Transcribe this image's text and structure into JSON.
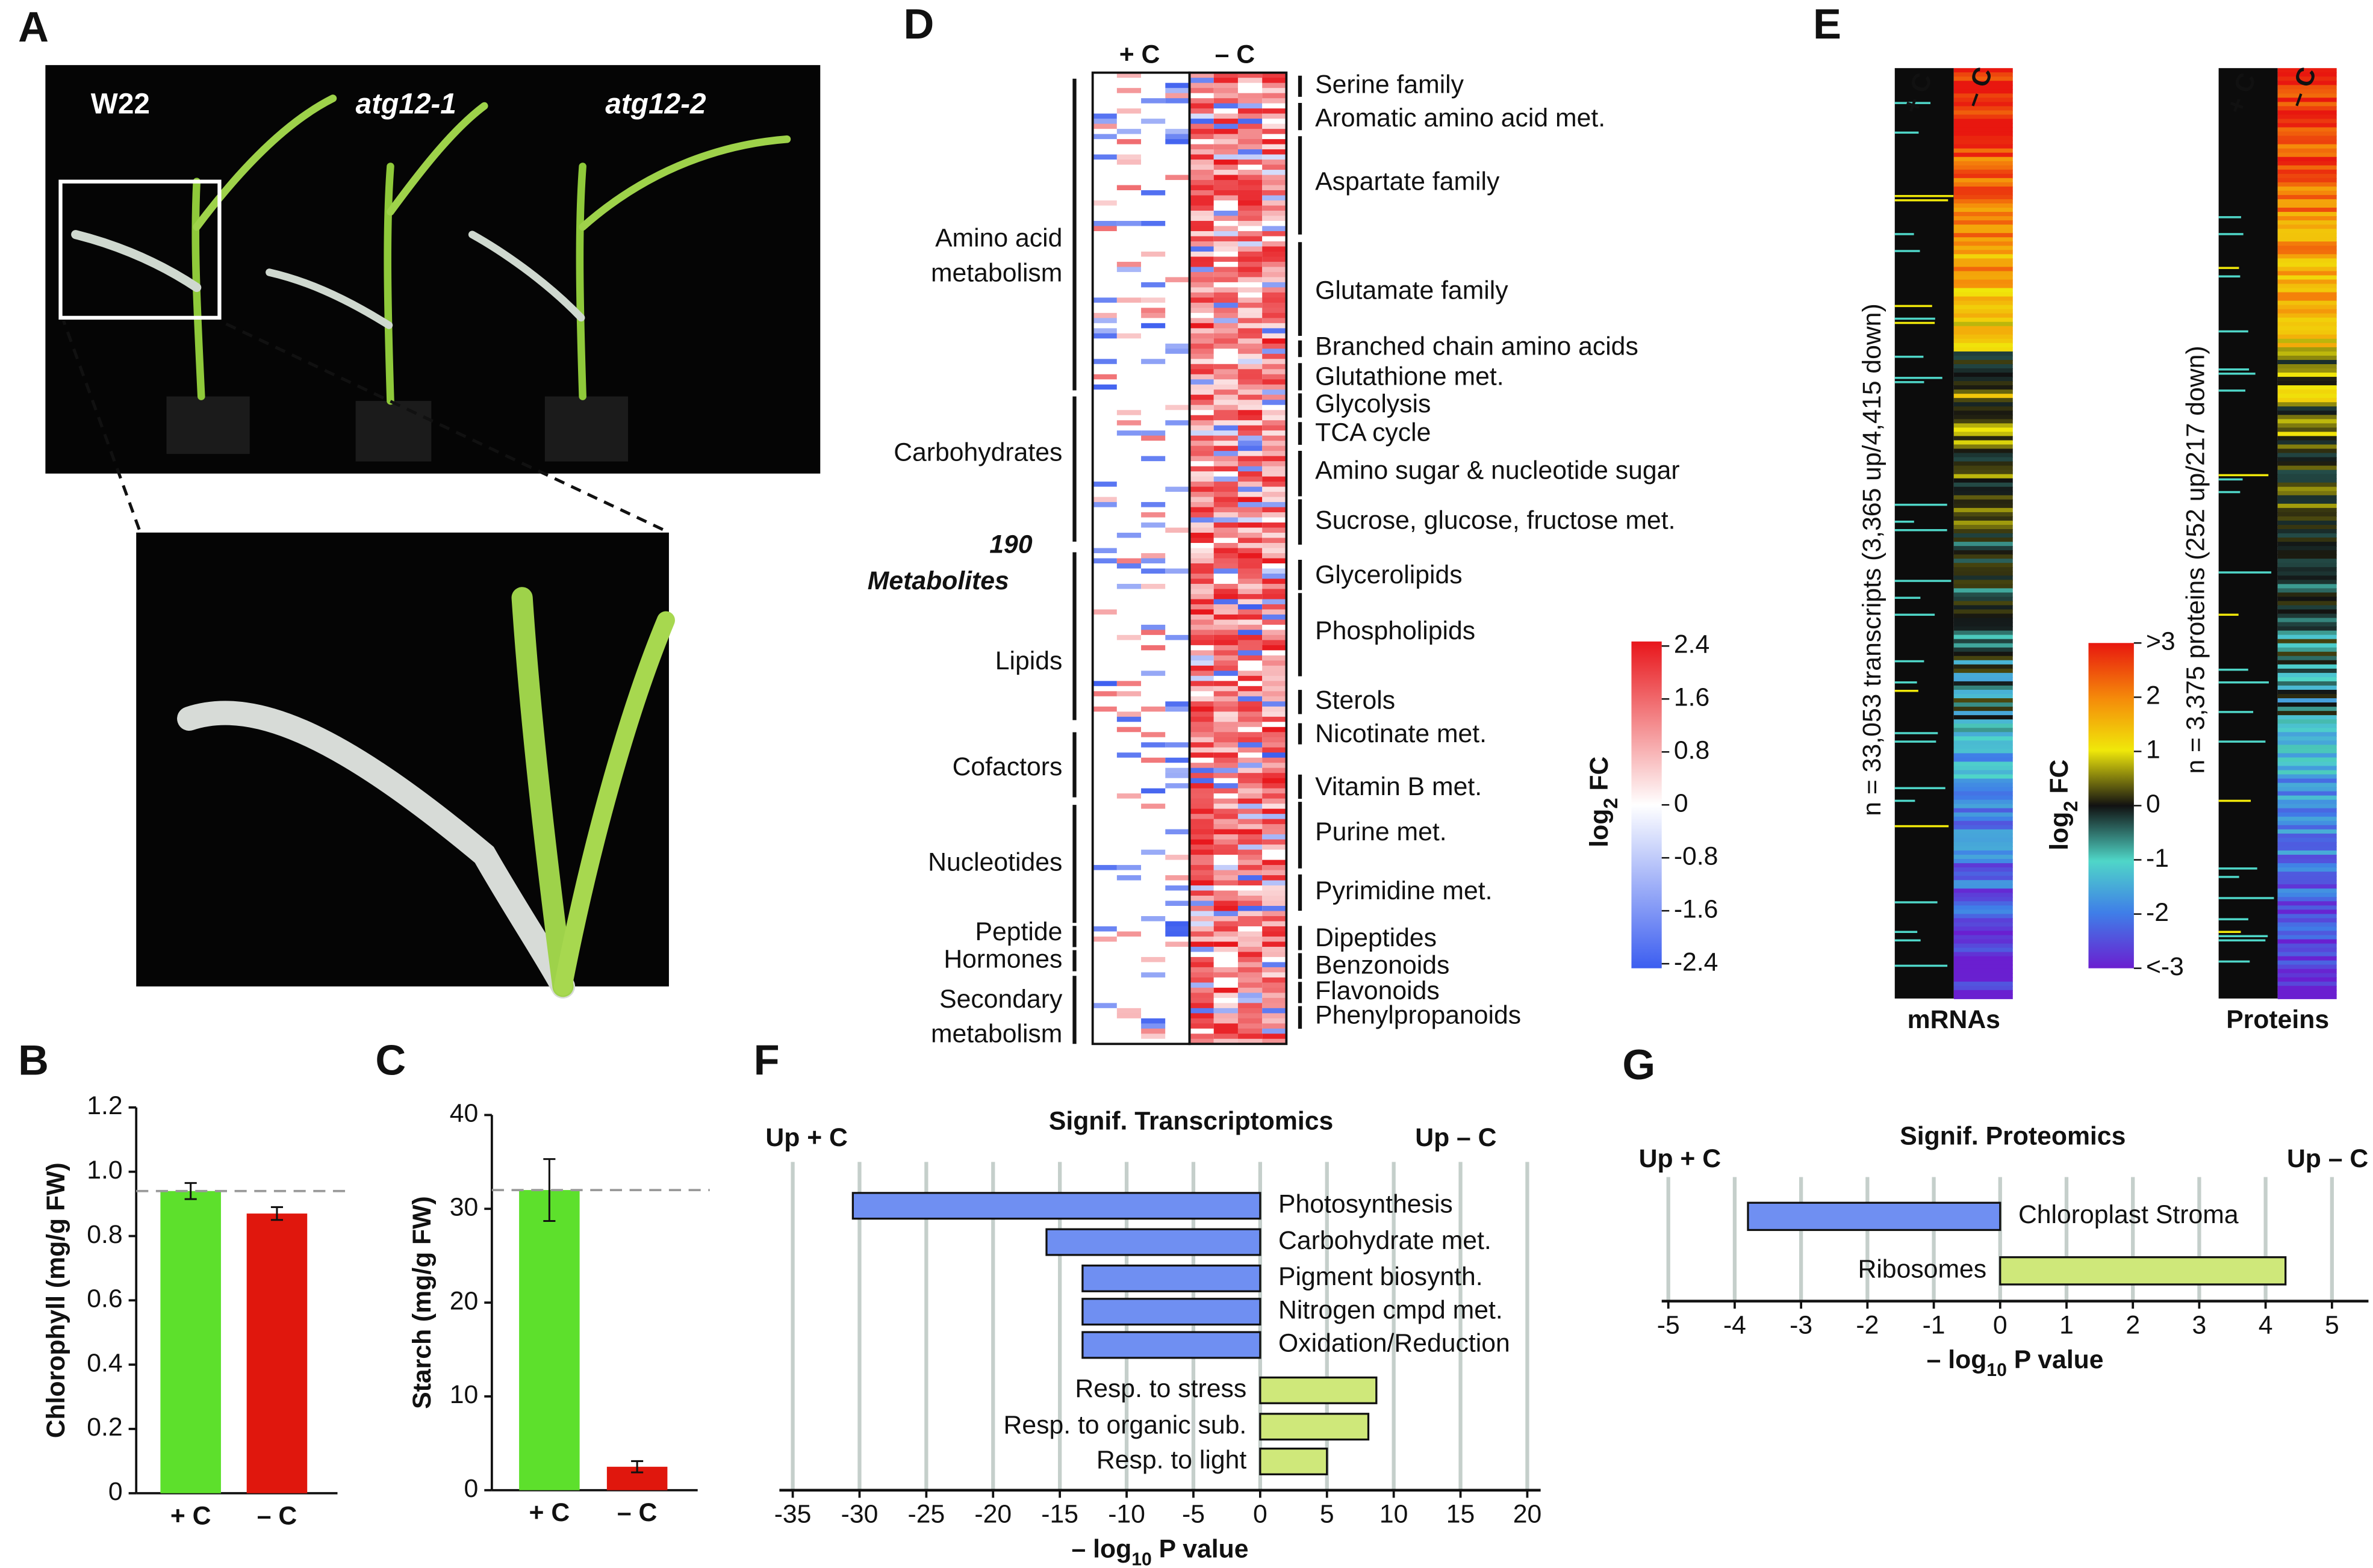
{
  "panel_labels": [
    "A",
    "B",
    "C",
    "D",
    "E",
    "F",
    "G"
  ],
  "photo": {
    "genotypes": [
      "W22",
      "atg12-1",
      "atg12-2"
    ]
  },
  "chart_data": [
    {
      "type": "bar",
      "categories": [
        "+ C",
        "– C"
      ],
      "values": [
        0.94,
        0.87
      ],
      "errors": [
        0.025,
        0.02
      ],
      "colors": [
        "#5de02c",
        "#e0170d"
      ],
      "ylabel": "Chlorophyll (mg/g FW)",
      "ylim": [
        0,
        1.2
      ],
      "yticks": [
        0,
        0.2,
        0.4,
        0.6,
        0.8,
        {
          "value": 1,
          "label": "1.0"
        },
        1.2
      ]
    },
    {
      "type": "bar",
      "categories": [
        "+ C",
        "– C"
      ],
      "values": [
        32,
        2.5
      ],
      "errors": [
        3.3,
        0.6
      ],
      "colors": [
        "#5de02c",
        "#e0170d"
      ],
      "ylabel": "Starch (mg/g FW)",
      "ylim": [
        0,
        40
      ],
      "yticks": [
        0,
        10,
        20,
        30,
        40
      ]
    },
    {
      "type": "hbar",
      "title": "Signif. Transcriptomics",
      "left_label": "Up + C",
      "right_label": "Up – C",
      "xlabel": "– log",
      "xlabel_sub": "10",
      "xlabel_end": " P value",
      "categories": [
        "Photosynthesis",
        "Carbohydrate met.",
        "Pigment biosynth.",
        "Nitrogen cmpd met.",
        "Oxidation/Reduction",
        "Resp. to stress",
        "Resp. to organic sub.",
        "Resp. to light"
      ],
      "values": [
        -30.5,
        -16,
        -13.3,
        -13.3,
        -13.3,
        8.7,
        8.1,
        5
      ],
      "colors": [
        "#6f8ff2",
        "#6f8ff2",
        "#6f8ff2",
        "#6f8ff2",
        "#6f8ff2",
        "#cfe87a",
        "#cfe87a",
        "#cfe87a"
      ],
      "xlim": [
        -36,
        21
      ],
      "xticks": [
        -35,
        -30,
        -25,
        -20,
        -15,
        -10,
        -5,
        0,
        5,
        10,
        15,
        20
      ],
      "grid": true
    },
    {
      "type": "hbar",
      "title": "Signif. Proteomics",
      "left_label": "Up + C",
      "right_label": "Up – C",
      "xlabel": "– log",
      "xlabel_sub": "10",
      "xlabel_end": " P value",
      "categories": [
        "Chloroplast Stroma",
        "Ribosomes"
      ],
      "values": [
        -3.8,
        4.3
      ],
      "colors": [
        "#6f8ff2",
        "#cfe87a"
      ],
      "xlim": [
        -5.1,
        5.55
      ],
      "xticks": [
        -5,
        -4,
        -3,
        -2,
        -1,
        0,
        1,
        2,
        3,
        4,
        5
      ],
      "grid": true
    }
  ],
  "metabolite_heatmap": {
    "columns": [
      "+ C",
      "– C"
    ],
    "total": [
      "190",
      "Metabolites"
    ],
    "groups": [
      [
        "Amino acid",
        "metabolism"
      ],
      [
        "Carbohydrates"
      ],
      [
        "Lipids"
      ],
      [
        "Cofactors"
      ],
      [
        "Nucleotides"
      ],
      [
        "Peptide"
      ],
      [
        "Hormones"
      ],
      [
        "Secondary",
        "metabolism"
      ]
    ],
    "pathways": [
      "Serine family",
      "Aromatic amino acid met.",
      "Aspartate family",
      "Glutamate family",
      "Branched chain amino acids",
      "Glutathione met.",
      "Glycolysis",
      "TCA cycle",
      "Amino sugar & nucleotide sugar",
      "Sucrose, glucose, fructose met.",
      "Glycerolipids",
      "Phospholipids",
      "Sterols",
      "Nicotinate met.",
      "Vitamin B met.",
      "Purine met.",
      "Pyrimidine met.",
      "Dipeptides",
      "Benzonoids",
      "Flavonoids",
      "Phenylpropanoids"
    ],
    "colorbar": {
      "label": "log",
      "label_sub": "2",
      "label_end": " FC",
      "ylim": [
        -2.4,
        2.4
      ],
      "ticks": [
        2.4,
        1.6,
        0.8,
        0,
        -0.8,
        -1.6,
        -2.4
      ]
    }
  },
  "omics_heatmap": {
    "panels": [
      {
        "title": "mRNAs",
        "columns": [
          "+ C",
          "– C"
        ],
        "description": "n = 33,053 transcripts  (3,365 up/4,415 down)"
      },
      {
        "title": "Proteins",
        "columns": [
          "+ C",
          "– C"
        ],
        "description": "n = 3,375 proteins  (252 up/217 down)"
      }
    ],
    "colorbar": {
      "label": "log",
      "label_sub": "2",
      "label_end": " FC",
      "ylim": [
        -3,
        3
      ],
      "ticks": [
        {
          "value": 3,
          "label": ">3"
        },
        2,
        1,
        0,
        -1,
        -2,
        {
          "value": -3,
          "label": "<-3"
        }
      ]
    }
  }
}
